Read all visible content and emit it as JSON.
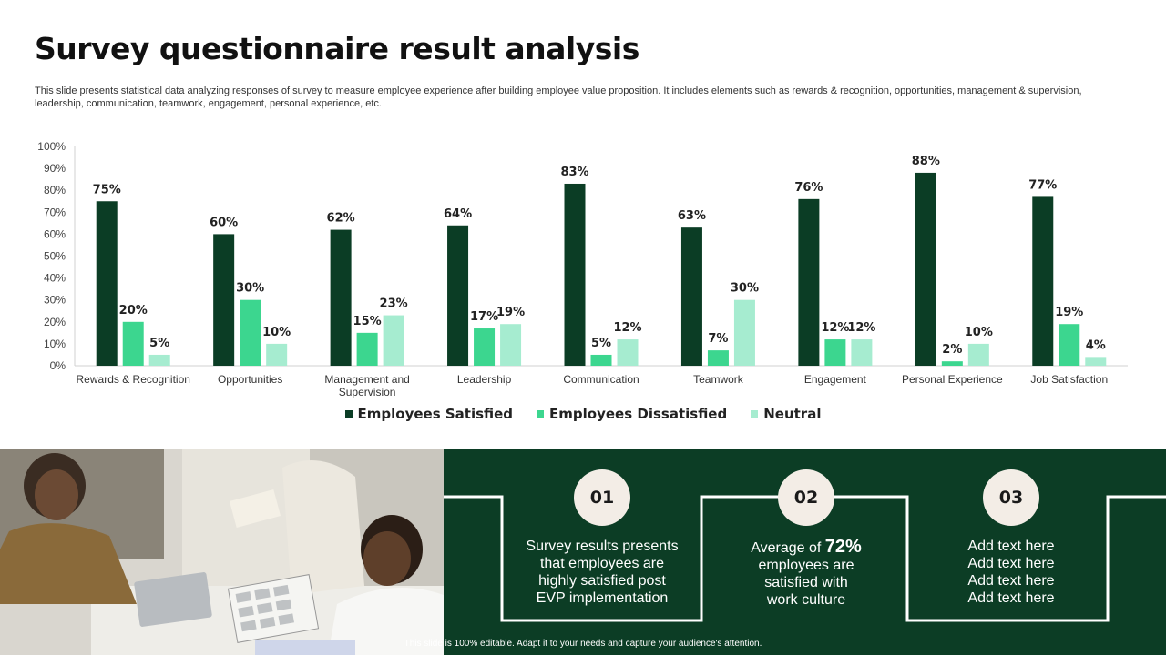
{
  "title": "Survey questionnaire result analysis",
  "description": "This slide presents statistical data analyzing responses of survey to  measure employee experience after building employee value proposition. It includes elements such as rewards & recognition, opportunities, management & supervision, leadership, communication, teamwork, engagement, personal experience, etc.",
  "chart_data": {
    "type": "bar",
    "categories": [
      "Rewards & Recognition",
      "Opportunities",
      "Management and Supervision",
      "Leadership",
      "Communication",
      "Teamwork",
      "Engagement",
      "Personal Experience",
      "Job Satisfaction"
    ],
    "series": [
      {
        "name": "Employees Satisfied",
        "color": "#0b3d25",
        "values": [
          75,
          60,
          62,
          64,
          83,
          63,
          76,
          88,
          77
        ]
      },
      {
        "name": "Employees Dissatisfied",
        "color": "#3cd68f",
        "values": [
          20,
          30,
          15,
          17,
          5,
          7,
          12,
          2,
          19
        ]
      },
      {
        "name": "Neutral",
        "color": "#a6ecd0",
        "values": [
          5,
          10,
          23,
          19,
          12,
          30,
          12,
          10,
          4
        ]
      }
    ],
    "ylim": [
      0,
      100
    ],
    "yticks": [
      "0%",
      "10%",
      "20%",
      "30%",
      "40%",
      "50%",
      "60%",
      "70%",
      "80%",
      "90%",
      "100%"
    ],
    "data_label_suffix": "%",
    "legend_position": "bottom",
    "grid": false
  },
  "steps": [
    {
      "number": "01",
      "text_lines": [
        "Survey results presents",
        "that employees are",
        "highly satisfied post",
        "EVP implementation"
      ]
    },
    {
      "number": "02",
      "text_prefix": "Average of ",
      "highlight": "72%",
      "text_lines": [
        "employees are",
        "satisfied with",
        "work culture"
      ]
    },
    {
      "number": "03",
      "text_lines": [
        "Add text here",
        "Add text here",
        "Add text here",
        "Add text here"
      ]
    }
  ],
  "footer": "This slide is 100% editable.  Adapt it to your needs and capture your audience's attention.",
  "colors": {
    "panel": "#0c3d25",
    "circle": "#f3ede6"
  }
}
